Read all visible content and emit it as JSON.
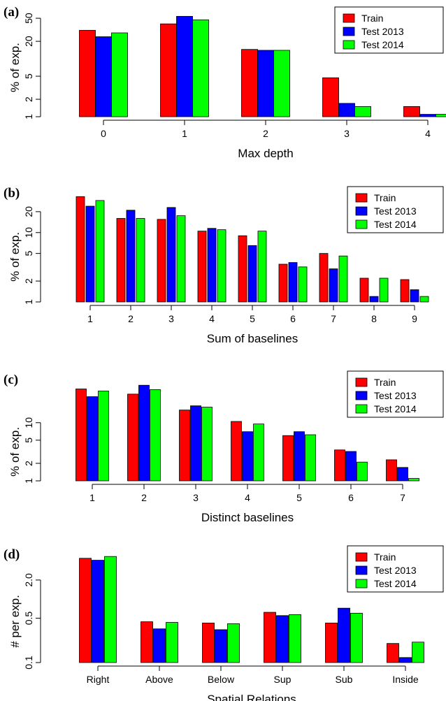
{
  "legend": {
    "entries": [
      {
        "label": "Train",
        "color": "#ff0000"
      },
      {
        "label": "Test 2013",
        "color": "#0000ff"
      },
      {
        "label": "Test 2014",
        "color": "#00ff00"
      }
    ]
  },
  "chart_data": [
    {
      "type": "bar",
      "panel_label": "(a)",
      "xlabel": "Max depth",
      "ylabel": "% of exp.",
      "yscale": "log",
      "ylim": [
        1,
        70
      ],
      "yticks": [
        1,
        2,
        5,
        20,
        50
      ],
      "categories": [
        "0",
        "1",
        "2",
        "3",
        "4"
      ],
      "series": [
        {
          "name": "Train",
          "color": "#ff0000",
          "values": [
            31,
            40,
            14.5,
            4.7,
            1.5
          ]
        },
        {
          "name": "Test 2013",
          "color": "#0000ff",
          "values": [
            24,
            54,
            14,
            1.7,
            1.1
          ]
        },
        {
          "name": "Test 2014",
          "color": "#00ff00",
          "values": [
            28,
            47,
            14,
            1.5,
            1.1
          ]
        }
      ],
      "legend_position": "top-right",
      "grid": false
    },
    {
      "type": "bar",
      "panel_label": "(b)",
      "xlabel": "Sum of baselines",
      "ylabel": "% of exp.",
      "yscale": "log",
      "ylim": [
        1,
        40
      ],
      "yticks": [
        1,
        2,
        5,
        10,
        20
      ],
      "categories": [
        "1",
        "2",
        "3",
        "4",
        "5",
        "6",
        "7",
        "8",
        "9"
      ],
      "series": [
        {
          "name": "Train",
          "color": "#ff0000",
          "values": [
            33,
            16,
            15.5,
            10.5,
            9,
            3.5,
            5,
            2.2,
            2.1
          ]
        },
        {
          "name": "Test 2013",
          "color": "#0000ff",
          "values": [
            24,
            21,
            23,
            11.5,
            6.5,
            3.7,
            3,
            1.2,
            1.5
          ]
        },
        {
          "name": "Test 2014",
          "color": "#00ff00",
          "values": [
            29,
            16,
            17.5,
            11,
            10.5,
            3.2,
            4.6,
            2.2,
            1.2
          ]
        }
      ],
      "legend_position": "top-right",
      "grid": false
    },
    {
      "type": "bar",
      "panel_label": "(c)",
      "xlabel": "Distinct baselines",
      "ylabel": "% of exp.",
      "yscale": "log",
      "ylim": [
        1,
        60
      ],
      "yticks": [
        1,
        2,
        5,
        10
      ],
      "categories": [
        "1",
        "2",
        "3",
        "4",
        "5",
        "6",
        "7"
      ],
      "series": [
        {
          "name": "Train",
          "color": "#ff0000",
          "values": [
            38,
            31,
            16.5,
            10.5,
            6,
            3.4,
            2.3
          ]
        },
        {
          "name": "Test 2013",
          "color": "#0000ff",
          "values": [
            28,
            44,
            19.5,
            7,
            7,
            3.2,
            1.7
          ]
        },
        {
          "name": "Test 2014",
          "color": "#00ff00",
          "values": [
            35,
            37,
            18.5,
            9.5,
            6.2,
            2.1,
            1.1
          ]
        }
      ],
      "legend_position": "top-right",
      "grid": false
    },
    {
      "type": "bar",
      "panel_label": "(d)",
      "xlabel": "Spatial Relations",
      "ylabel": "# per exp.",
      "yscale": "log",
      "ylim": [
        0.1,
        5.5
      ],
      "yticks": [
        0.1,
        0.5,
        2.0
      ],
      "ytick_labels": [
        "0.1",
        "0.5",
        "2.0"
      ],
      "categories": [
        "Right",
        "Above",
        "Below",
        "Sup",
        "Sub",
        "Inside"
      ],
      "series": [
        {
          "name": "Train",
          "color": "#ff0000",
          "values": [
            4.4,
            0.44,
            0.42,
            0.62,
            0.42,
            0.2
          ]
        },
        {
          "name": "Test 2013",
          "color": "#0000ff",
          "values": [
            4.1,
            0.34,
            0.33,
            0.55,
            0.72,
            0.12
          ]
        },
        {
          "name": "Test 2014",
          "color": "#00ff00",
          "values": [
            4.7,
            0.43,
            0.41,
            0.57,
            0.6,
            0.21
          ]
        }
      ],
      "legend_position": "top-right",
      "grid": false
    }
  ]
}
